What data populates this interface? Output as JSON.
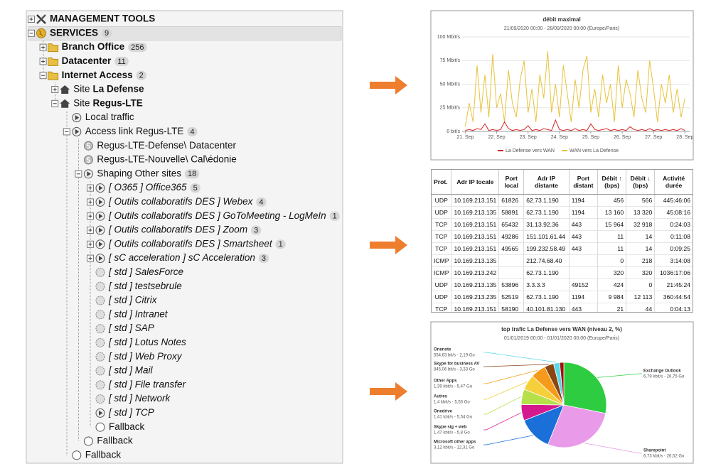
{
  "tree": {
    "nodes": [
      {
        "label": "MANAGEMENT TOOLS",
        "level": 0,
        "bold": true,
        "icon": "tools",
        "expanded": false
      },
      {
        "label": "SERVICES",
        "level": 0,
        "bold": true,
        "badge": 9,
        "icon": "globe",
        "expanded": true,
        "selected": true
      },
      {
        "label": "Branch Office",
        "level": 1,
        "bold": true,
        "badge": 256,
        "icon": "folder",
        "expanded": false
      },
      {
        "label": "Datacenter",
        "level": 1,
        "bold": true,
        "badge": 11,
        "icon": "folder",
        "expanded": false
      },
      {
        "label": "Internet Access",
        "level": 1,
        "bold": true,
        "badge": 2,
        "icon": "folder",
        "expanded": true
      },
      {
        "prefix": "Site",
        "label": "La Defense",
        "level": 2,
        "bold": true,
        "icon": "site",
        "expanded": false
      },
      {
        "prefix": "Site",
        "label": "Regus-LTE",
        "level": 2,
        "bold": true,
        "icon": "site",
        "expanded": true
      },
      {
        "label": "Local traffic",
        "level": 3,
        "icon": "play"
      },
      {
        "label": "Access link Regus-LTE",
        "level": 3,
        "badge": 4,
        "icon": "play",
        "expanded": true
      },
      {
        "label": "Regus-LTE-Defense\\ Datacenter",
        "level": 4,
        "icon": "s"
      },
      {
        "label": "Regus-LTE-Nouvelle\\ Cal\\édonie",
        "level": 4,
        "icon": "s"
      },
      {
        "label": "Shaping Other sites",
        "level": 4,
        "badge": 18,
        "icon": "play",
        "expanded": true
      },
      {
        "label": "[ O365 ] Office365",
        "level": 5,
        "italic": true,
        "badge": 5,
        "icon": "play",
        "expanded": false
      },
      {
        "label": "[ Outils collaboratifs DES ] Webex",
        "level": 5,
        "italic": true,
        "badge": 4,
        "icon": "play",
        "expanded": false
      },
      {
        "label": "[ Outils collaboratifs DES ] GoToMeeting - LogMeIn",
        "level": 5,
        "italic": true,
        "badge": 1,
        "icon": "play",
        "expanded": false
      },
      {
        "label": "[ Outils collaboratifs DES ] Zoom",
        "level": 5,
        "italic": true,
        "badge": 3,
        "icon": "play",
        "expanded": false
      },
      {
        "label": "[ Outils collaboratifs DES ] Smartsheet",
        "level": 5,
        "italic": true,
        "badge": 1,
        "icon": "play",
        "expanded": false
      },
      {
        "label": "[ sC acceleration ] sC Acceleration",
        "level": 5,
        "italic": true,
        "badge": 3,
        "icon": "play",
        "expanded": false
      },
      {
        "label": "[ std ] SalesForce",
        "level": 5,
        "italic": true,
        "icon": "std"
      },
      {
        "label": "[ std ] testsebrule",
        "level": 5,
        "italic": true,
        "icon": "std"
      },
      {
        "label": "[ std ] Citrix",
        "level": 5,
        "italic": true,
        "icon": "std"
      },
      {
        "label": "[ std ] Intranet",
        "level": 5,
        "italic": true,
        "icon": "std"
      },
      {
        "label": "[ std ] SAP",
        "level": 5,
        "italic": true,
        "icon": "std"
      },
      {
        "label": "[ std ] Lotus Notes",
        "level": 5,
        "italic": true,
        "icon": "std"
      },
      {
        "label": "[ std ] Web Proxy",
        "level": 5,
        "italic": true,
        "icon": "std"
      },
      {
        "label": "[ std ] Mail",
        "level": 5,
        "italic": true,
        "icon": "std"
      },
      {
        "label": "[ std ] File transfer",
        "level": 5,
        "italic": true,
        "icon": "std"
      },
      {
        "label": "[ std ] Network",
        "level": 5,
        "italic": true,
        "icon": "std"
      },
      {
        "label": "[ std ] TCP",
        "level": 5,
        "italic": true,
        "icon": "play"
      },
      {
        "label": "Fallback",
        "level": 5,
        "icon": "circle"
      },
      {
        "label": "Fallback",
        "level": 4,
        "icon": "circle"
      },
      {
        "label": "Fallback",
        "level": 3,
        "icon": "circle"
      }
    ]
  },
  "line_chart": {
    "type": "line",
    "title": "débit maximal",
    "subtitle": "21/09/2020 00:00 - 28/09/2020 00:00 (Europe/Paris)",
    "x": [
      21,
      21.125,
      21.25,
      21.375,
      21.5,
      21.625,
      21.75,
      21.875,
      22,
      22.125,
      22.25,
      22.375,
      22.5,
      22.625,
      22.75,
      22.875,
      23,
      23.125,
      23.25,
      23.375,
      23.5,
      23.625,
      23.75,
      23.875,
      24,
      24.125,
      24.25,
      24.375,
      24.5,
      24.625,
      24.75,
      24.875,
      25,
      25.125,
      25.25,
      25.375,
      25.5,
      25.625,
      25.75,
      25.875,
      26,
      26.125,
      26.25,
      26.375,
      26.5,
      26.625,
      26.75,
      26.875,
      27,
      27.125,
      27.25,
      27.375,
      27.5,
      27.625,
      27.75,
      27.875,
      28
    ],
    "series": [
      {
        "name": "La Defense vers WAN",
        "color": "#d62728",
        "values": [
          1,
          2,
          1,
          3,
          2,
          8,
          1,
          2,
          1,
          2,
          10,
          3,
          1,
          2,
          1,
          2,
          6,
          1,
          2,
          1,
          3,
          2,
          1,
          12,
          2,
          1,
          2,
          1,
          3,
          1,
          2,
          1,
          8,
          2,
          1,
          2,
          3,
          1,
          2,
          1,
          2,
          1,
          5,
          2,
          1,
          2,
          1,
          3,
          1,
          2,
          1,
          2,
          1,
          2,
          1,
          3,
          1
        ]
      },
      {
        "name": "WAN vers La Defense",
        "color": "#e8c23a",
        "values": [
          5,
          30,
          10,
          70,
          20,
          60,
          15,
          82,
          25,
          40,
          10,
          65,
          30,
          15,
          55,
          75,
          20,
          45,
          10,
          60,
          35,
          85,
          20,
          50,
          15,
          70,
          40,
          10,
          55,
          25,
          65,
          80,
          20,
          45,
          15,
          60,
          30,
          50,
          10,
          70,
          25,
          55,
          40,
          15,
          65,
          35,
          20,
          75,
          45,
          10,
          50,
          30,
          60,
          20,
          45,
          15,
          35
        ]
      }
    ],
    "xlim": [
      20.9,
      28.15
    ],
    "xticks": [
      {
        "value": 21,
        "label": "21. Sep"
      },
      {
        "value": 22,
        "label": "22. Sep"
      },
      {
        "value": 23,
        "label": "23. Sep"
      },
      {
        "value": 24,
        "label": "24. Sep"
      },
      {
        "value": 25,
        "label": "25. Sep"
      },
      {
        "value": 26,
        "label": "26. Sep"
      },
      {
        "value": 27,
        "label": "27. Sep"
      },
      {
        "value": 28,
        "label": "28. Sep"
      }
    ],
    "ylim": [
      0,
      100
    ],
    "yticks": [
      {
        "value": 0,
        "label": "0 bit/s"
      },
      {
        "value": 25,
        "label": "25 Mbit/s"
      },
      {
        "value": 50,
        "label": "50 Mbit/s"
      },
      {
        "value": 75,
        "label": "75 Mbit/s"
      },
      {
        "value": 100,
        "label": "100 Mbit/s"
      }
    ],
    "grid": true
  },
  "table": {
    "headers": [
      "Prot.",
      "Adr IP locale",
      "Port local",
      "Adr IP distante",
      "Port distant",
      "Débit ↑ (bps)",
      "Débit ↓ (bps)",
      "Activité durée"
    ],
    "rows": [
      [
        "UDP",
        "10.169.213.151",
        "61826",
        "62.73.1.190",
        "1194",
        "456",
        "566",
        "445:46:06"
      ],
      [
        "UDP",
        "10.169.213.135",
        "58891",
        "62.73.1.190",
        "1194",
        "13 160",
        "13 320",
        "45:08:16"
      ],
      [
        "TCP",
        "10.169.213.151",
        "65432",
        "31.13.92.36",
        "443",
        "15 964",
        "32 918",
        "0:24:03"
      ],
      [
        "TCP",
        "10.169.213.151",
        "49286",
        "151.101.61.44",
        "443",
        "11",
        "14",
        "0:11:08"
      ],
      [
        "TCP",
        "10.169.213.151",
        "49565",
        "199.232.58.49",
        "443",
        "11",
        "14",
        "0:09:25"
      ],
      [
        "ICMP",
        "10.169.213.135",
        null,
        "212.74.68.40",
        null,
        "0",
        "218",
        "3:14:08"
      ],
      [
        "ICMP",
        "10.169.213.242",
        null,
        "62.73.1.190",
        null,
        "320",
        "320",
        "1036:17:06"
      ],
      [
        "UDP",
        "10.169.213.135",
        "53896",
        "3.3.3.3",
        "49152",
        "424",
        "0",
        "21:45:24"
      ],
      [
        "UDP",
        "10.169.213.235",
        "52519",
        "62.73.1.190",
        "1194",
        "9 984",
        "12 113",
        "360:44:54"
      ],
      [
        "TCP",
        "10.169.213.151",
        "58190",
        "40.101.81.130",
        "443",
        "21",
        "44",
        "0:04:13"
      ]
    ]
  },
  "pie_chart": {
    "type": "pie",
    "title": "top trafic La Defense vers WAN (niveau 2, %)",
    "subtitle": "01/01/2019 00:00 - 01/01/2020 00:00 (Europe/Paris)",
    "categories": [
      "Exchange Outlook",
      "Sharepoint",
      "Microsoft other apps",
      "Skype sig + web",
      "Onedrive",
      "Autres",
      "Other Apps",
      "Skype for business AV",
      "Onenote",
      null
    ],
    "values": [
      26.75,
      26.52,
      12.31,
      5.8,
      5.54,
      5.53,
      5.47,
      3.33,
      2.19,
      1.5
    ],
    "value_labels": [
      "6,79 kbit/s - 26,75 Go",
      "6,73 kbit/s - 26,52 Go",
      "3,12 kbit/s - 12,31 Go",
      "1,47 kbit/s - 5,8 Go",
      "1,41 kbit/s - 5,54 Go",
      "1,4 kbit/s - 5,53 Go",
      "1,39 kbit/s - 5,47 Go",
      "845,06 bit/s - 3,33 Go",
      "554,63 bit/s - 2,19 Go",
      null
    ],
    "colors": [
      "#2ecc40",
      "#e99be9",
      "#1a6fd8",
      "#d6188f",
      "#b5e04a",
      "#f5d03a",
      "#f59a1b",
      "#8b4513",
      "#5ad8e6",
      "#a01010"
    ]
  }
}
